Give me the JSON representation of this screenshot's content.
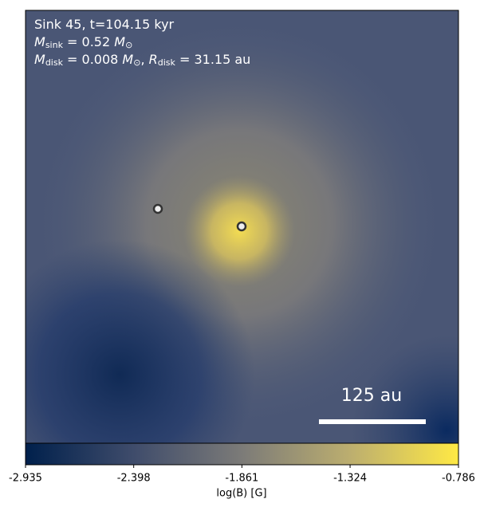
{
  "chart_data": {
    "type": "image",
    "annotations": [
      [
        {
          "text": "Sink 45, t=104.15 kyr"
        }
      ],
      [
        {
          "text": "M",
          "italic": true
        },
        {
          "text": "sink",
          "sub": true
        },
        {
          "text": " = 0.52 "
        },
        {
          "text": "M",
          "italic": true
        },
        {
          "text": "⊙",
          "sub": true
        }
      ],
      [
        {
          "text": "M",
          "italic": true
        },
        {
          "text": "disk",
          "sub": true
        },
        {
          "text": " = 0.008 "
        },
        {
          "text": "M",
          "italic": true
        },
        {
          "text": "⊙",
          "sub": true
        },
        {
          "text": ", "
        },
        {
          "text": "R",
          "italic": true
        },
        {
          "text": "disk",
          "sub": true
        },
        {
          "text": " = 31.15 au"
        }
      ]
    ],
    "scalebar_label": "125 au",
    "colorbar": {
      "label": "log(B) [G]",
      "xlim": [
        -2.935,
        -0.786
      ],
      "xticks": [
        -2.935,
        -2.398,
        -1.861,
        -1.324,
        -0.786
      ],
      "colormap": [
        "#00204c",
        "#3f4c6b",
        "#7c7b78",
        "#bcae6f",
        "#ffe945"
      ]
    }
  }
}
